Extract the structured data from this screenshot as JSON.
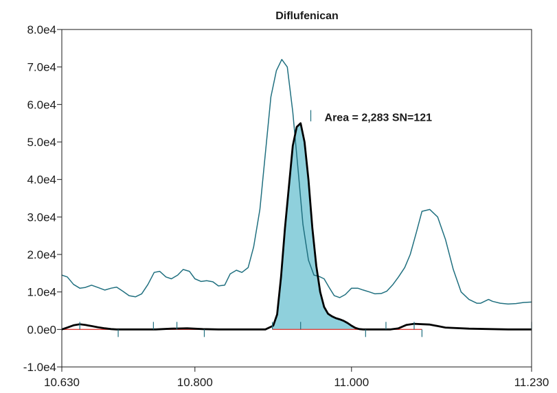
{
  "chart_data": {
    "type": "line",
    "title": "Diflufenican",
    "xlabel": "",
    "ylabel": "",
    "xlim": [
      10.63,
      11.23
    ],
    "ylim": [
      -10000,
      80000
    ],
    "x_ticks": [
      10.63,
      10.8,
      11.0,
      11.23
    ],
    "x_tick_labels": [
      "10.630",
      "10.800",
      "11.000",
      "11.230"
    ],
    "y_ticks": [
      -10000,
      0,
      10000,
      20000,
      30000,
      40000,
      50000,
      60000,
      70000,
      80000
    ],
    "y_tick_labels": [
      "-1.0e4",
      "0.0e0",
      "1.0e4",
      "2.0e4",
      "3.0e4",
      "4.0e4",
      "5.0e4",
      "6.0e4",
      "7.0e4",
      "8.0e4"
    ],
    "grid": false,
    "colors": {
      "reference_trace": "#1f6f7f",
      "quant_trace": "#000000",
      "peak_fill": "#8fd0dc",
      "baseline": "#e0403a",
      "marker": "#1f6f7f"
    },
    "annotation": {
      "text": "Area = 2,283 SN=121",
      "x": 10.948,
      "y": 57000
    },
    "integration": {
      "x_start": 10.899,
      "x_end": 11.018
    },
    "baseline_segments": [
      [
        10.63,
        10.7
      ],
      [
        10.7,
        10.81
      ],
      [
        10.899,
        11.018
      ],
      [
        11.05,
        11.09
      ]
    ],
    "markers": [
      {
        "x": 10.653,
        "dir": "up"
      },
      {
        "x": 10.702,
        "dir": "down"
      },
      {
        "x": 10.747,
        "dir": "up"
      },
      {
        "x": 10.777,
        "dir": "up"
      },
      {
        "x": 10.812,
        "dir": "down"
      },
      {
        "x": 10.899,
        "dir": "up"
      },
      {
        "x": 10.935,
        "dir": "up"
      },
      {
        "x": 11.018,
        "dir": "down"
      },
      {
        "x": 11.044,
        "dir": "up"
      },
      {
        "x": 11.08,
        "dir": "up"
      },
      {
        "x": 11.09,
        "dir": "down"
      },
      {
        "x": 11.23,
        "dir": "up"
      }
    ],
    "series": [
      {
        "x": [
          10.63,
          10.637,
          10.645,
          10.653,
          10.66,
          10.668,
          10.676,
          10.685,
          10.693,
          10.7,
          10.708,
          10.716,
          10.724,
          10.732,
          10.74,
          10.748,
          10.755,
          10.763,
          10.77,
          10.778,
          10.785,
          10.793,
          10.8,
          10.808,
          10.815,
          10.823,
          10.83,
          10.838,
          10.845,
          10.853,
          10.86,
          10.868,
          10.875,
          10.883,
          10.89,
          10.897,
          10.904,
          10.911,
          10.918,
          10.925,
          10.932,
          10.938,
          10.945,
          10.952,
          10.958,
          10.965,
          10.972,
          10.978,
          10.985,
          10.992,
          11.0,
          11.008,
          11.015,
          11.023,
          11.03,
          11.038,
          11.045,
          11.053,
          11.06,
          11.068,
          11.075,
          11.083,
          11.09,
          11.1,
          11.11,
          11.12,
          11.13,
          11.14,
          11.15,
          11.16,
          11.165,
          11.17,
          11.175,
          11.18,
          11.19,
          11.2,
          11.21,
          11.22,
          11.23
        ],
        "values": [
          14500,
          14000,
          12000,
          11000,
          11200,
          11800,
          11200,
          10500,
          11000,
          11300,
          10200,
          9000,
          8700,
          9500,
          12000,
          15200,
          15500,
          14000,
          13500,
          14500,
          16000,
          15500,
          13500,
          12800,
          13000,
          12700,
          11600,
          11800,
          14800,
          15800,
          15200,
          16500,
          22000,
          32000,
          47000,
          62000,
          69000,
          72000,
          70000,
          58000,
          42000,
          28000,
          18500,
          14500,
          14200,
          13500,
          11000,
          9000,
          8500,
          9300,
          11000,
          11000,
          10500,
          10000,
          9500,
          9600,
          10200,
          12000,
          14000,
          16500,
          20000,
          26000,
          31500,
          32000,
          30000,
          24000,
          16000,
          10000,
          8000,
          7000,
          7000,
          7500,
          8000,
          7500,
          7000,
          6800,
          6900,
          7200,
          7300
        ]
      },
      {
        "x": [
          10.63,
          10.637,
          10.645,
          10.653,
          10.66,
          10.668,
          10.676,
          10.685,
          10.693,
          10.7,
          10.72,
          10.75,
          10.77,
          10.79,
          10.81,
          10.83,
          10.85,
          10.87,
          10.89,
          10.9,
          10.905,
          10.91,
          10.915,
          10.92,
          10.925,
          10.93,
          10.935,
          10.94,
          10.945,
          10.95,
          10.955,
          10.96,
          10.965,
          10.97,
          10.975,
          10.98,
          10.985,
          10.99,
          10.995,
          11.0,
          11.005,
          11.01,
          11.015,
          11.02,
          11.03,
          11.04,
          11.05,
          11.06,
          11.07,
          11.08,
          11.09,
          11.1,
          11.12,
          11.15,
          11.2,
          11.23
        ],
        "values": [
          0,
          500,
          1100,
          1400,
          1200,
          900,
          600,
          300,
          100,
          0,
          0,
          0,
          200,
          300,
          100,
          0,
          0,
          0,
          0,
          1000,
          4000,
          14000,
          27000,
          38000,
          49000,
          54000,
          55000,
          50000,
          40000,
          27000,
          17000,
          10000,
          6000,
          4200,
          3500,
          3000,
          2700,
          2300,
          1700,
          1000,
          400,
          100,
          0,
          0,
          0,
          0,
          0,
          300,
          1200,
          1500,
          1400,
          1300,
          500,
          200,
          0,
          0
        ]
      }
    ]
  }
}
